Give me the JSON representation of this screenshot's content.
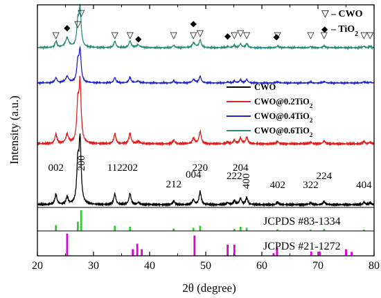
{
  "chart_data": {
    "type": "line",
    "xlabel": "2θ (degree)",
    "ylabel": "Intensity (a.u.)",
    "xlim": [
      20,
      80
    ],
    "xticks": [
      20,
      30,
      40,
      50,
      60,
      70,
      80
    ],
    "y_axis_ticks": "none",
    "grid": false,
    "peaks": [
      {
        "x": 23.3,
        "h": 0.16
      },
      {
        "x": 25.3,
        "h": 0.12
      },
      {
        "x": 27.2,
        "h": 0.62
      },
      {
        "x": 27.6,
        "h": 1.0
      },
      {
        "x": 33.8,
        "h": 0.17
      },
      {
        "x": 36.5,
        "h": 0.18
      },
      {
        "x": 38.0,
        "h": 0.03
      },
      {
        "x": 44.3,
        "h": 0.06
      },
      {
        "x": 47.8,
        "h": 0.08
      },
      {
        "x": 49.0,
        "h": 0.21
      },
      {
        "x": 53.9,
        "h": 0.03
      },
      {
        "x": 55.1,
        "h": 0.06
      },
      {
        "x": 56.2,
        "h": 0.1
      },
      {
        "x": 57.3,
        "h": 0.11
      },
      {
        "x": 62.8,
        "h": 0.04
      },
      {
        "x": 68.7,
        "h": 0.03
      },
      {
        "x": 71.1,
        "h": 0.05
      },
      {
        "x": 78.2,
        "h": 0.04
      },
      {
        "x": 79.3,
        "h": 0.03
      }
    ],
    "series": [
      {
        "name": "CWO",
        "color": "#000000",
        "tio2": 0
      },
      {
        "name": "CWO@0.2TiO",
        "subscript": "2",
        "color": "#e02020",
        "tio2": 0.04
      },
      {
        "name": "CWO@0.4TiO",
        "subscript": "2",
        "color": "#2222cc",
        "tio2": 0.09
      },
      {
        "name": "CWO@0.6TiO",
        "subscript": "2",
        "color": "#2a8c7c",
        "tio2": 0.14
      }
    ],
    "miller_indices": [
      {
        "label": "002",
        "x": 23.3
      },
      {
        "label": "200",
        "x": 27.9
      },
      {
        "label": "112",
        "x": 33.8
      },
      {
        "label": "202",
        "x": 36.5
      },
      {
        "label": "212",
        "x": 44.3
      },
      {
        "label": "004",
        "x": 47.8
      },
      {
        "label": "220",
        "x": 49.0
      },
      {
        "label": "222",
        "x": 55.1
      },
      {
        "label": "204",
        "x": 56.2
      },
      {
        "label": "400",
        "x": 57.3
      },
      {
        "label": "402",
        "x": 62.8
      },
      {
        "label": "322",
        "x": 68.7
      },
      {
        "label": "224",
        "x": 71.1
      },
      {
        "label": "404",
        "x": 78.2
      }
    ],
    "markers": {
      "cwo_label": "CWO",
      "cwo_symbol": "▽",
      "tio2_label": "TiO",
      "tio2_subscript": "2",
      "tio2_symbol": "◆",
      "cwo_positions": [
        23.3,
        27.2,
        27.8,
        33.8,
        36.5,
        44.3,
        47.8,
        49.0,
        55.1,
        56.2,
        57.3,
        62.8,
        68.7,
        71.1,
        78.2,
        79.3
      ],
      "tio2_positions": [
        25.3,
        38.0,
        47.8,
        53.9,
        62.6
      ]
    },
    "references": [
      {
        "label": "JCPDS #83-1334",
        "color": "#33cc33",
        "lines": [
          {
            "x": 23.3,
            "h": 0.28
          },
          {
            "x": 27.2,
            "h": 0.45
          },
          {
            "x": 27.8,
            "h": 1.0
          },
          {
            "x": 33.8,
            "h": 0.25
          },
          {
            "x": 36.5,
            "h": 0.2
          },
          {
            "x": 44.3,
            "h": 0.12
          },
          {
            "x": 47.8,
            "h": 0.15
          },
          {
            "x": 49.0,
            "h": 0.25
          },
          {
            "x": 55.1,
            "h": 0.1
          },
          {
            "x": 56.2,
            "h": 0.2
          },
          {
            "x": 57.3,
            "h": 0.15
          },
          {
            "x": 62.8,
            "h": 0.08
          },
          {
            "x": 68.7,
            "h": 0.06
          },
          {
            "x": 71.1,
            "h": 0.1
          },
          {
            "x": 78.2,
            "h": 0.06
          }
        ]
      },
      {
        "label": "JCPDS #21-1272",
        "color": "#dd00dd",
        "lines": [
          {
            "x": 25.3,
            "h": 1.0
          },
          {
            "x": 37.0,
            "h": 0.3
          },
          {
            "x": 37.8,
            "h": 0.55
          },
          {
            "x": 38.6,
            "h": 0.3
          },
          {
            "x": 48.0,
            "h": 0.92
          },
          {
            "x": 53.9,
            "h": 0.5
          },
          {
            "x": 55.1,
            "h": 0.5
          },
          {
            "x": 62.1,
            "h": 0.12
          },
          {
            "x": 62.7,
            "h": 0.38
          },
          {
            "x": 68.8,
            "h": 0.2
          },
          {
            "x": 70.3,
            "h": 0.2
          },
          {
            "x": 75.0,
            "h": 0.3
          },
          {
            "x": 76.0,
            "h": 0.18
          }
        ]
      }
    ]
  }
}
